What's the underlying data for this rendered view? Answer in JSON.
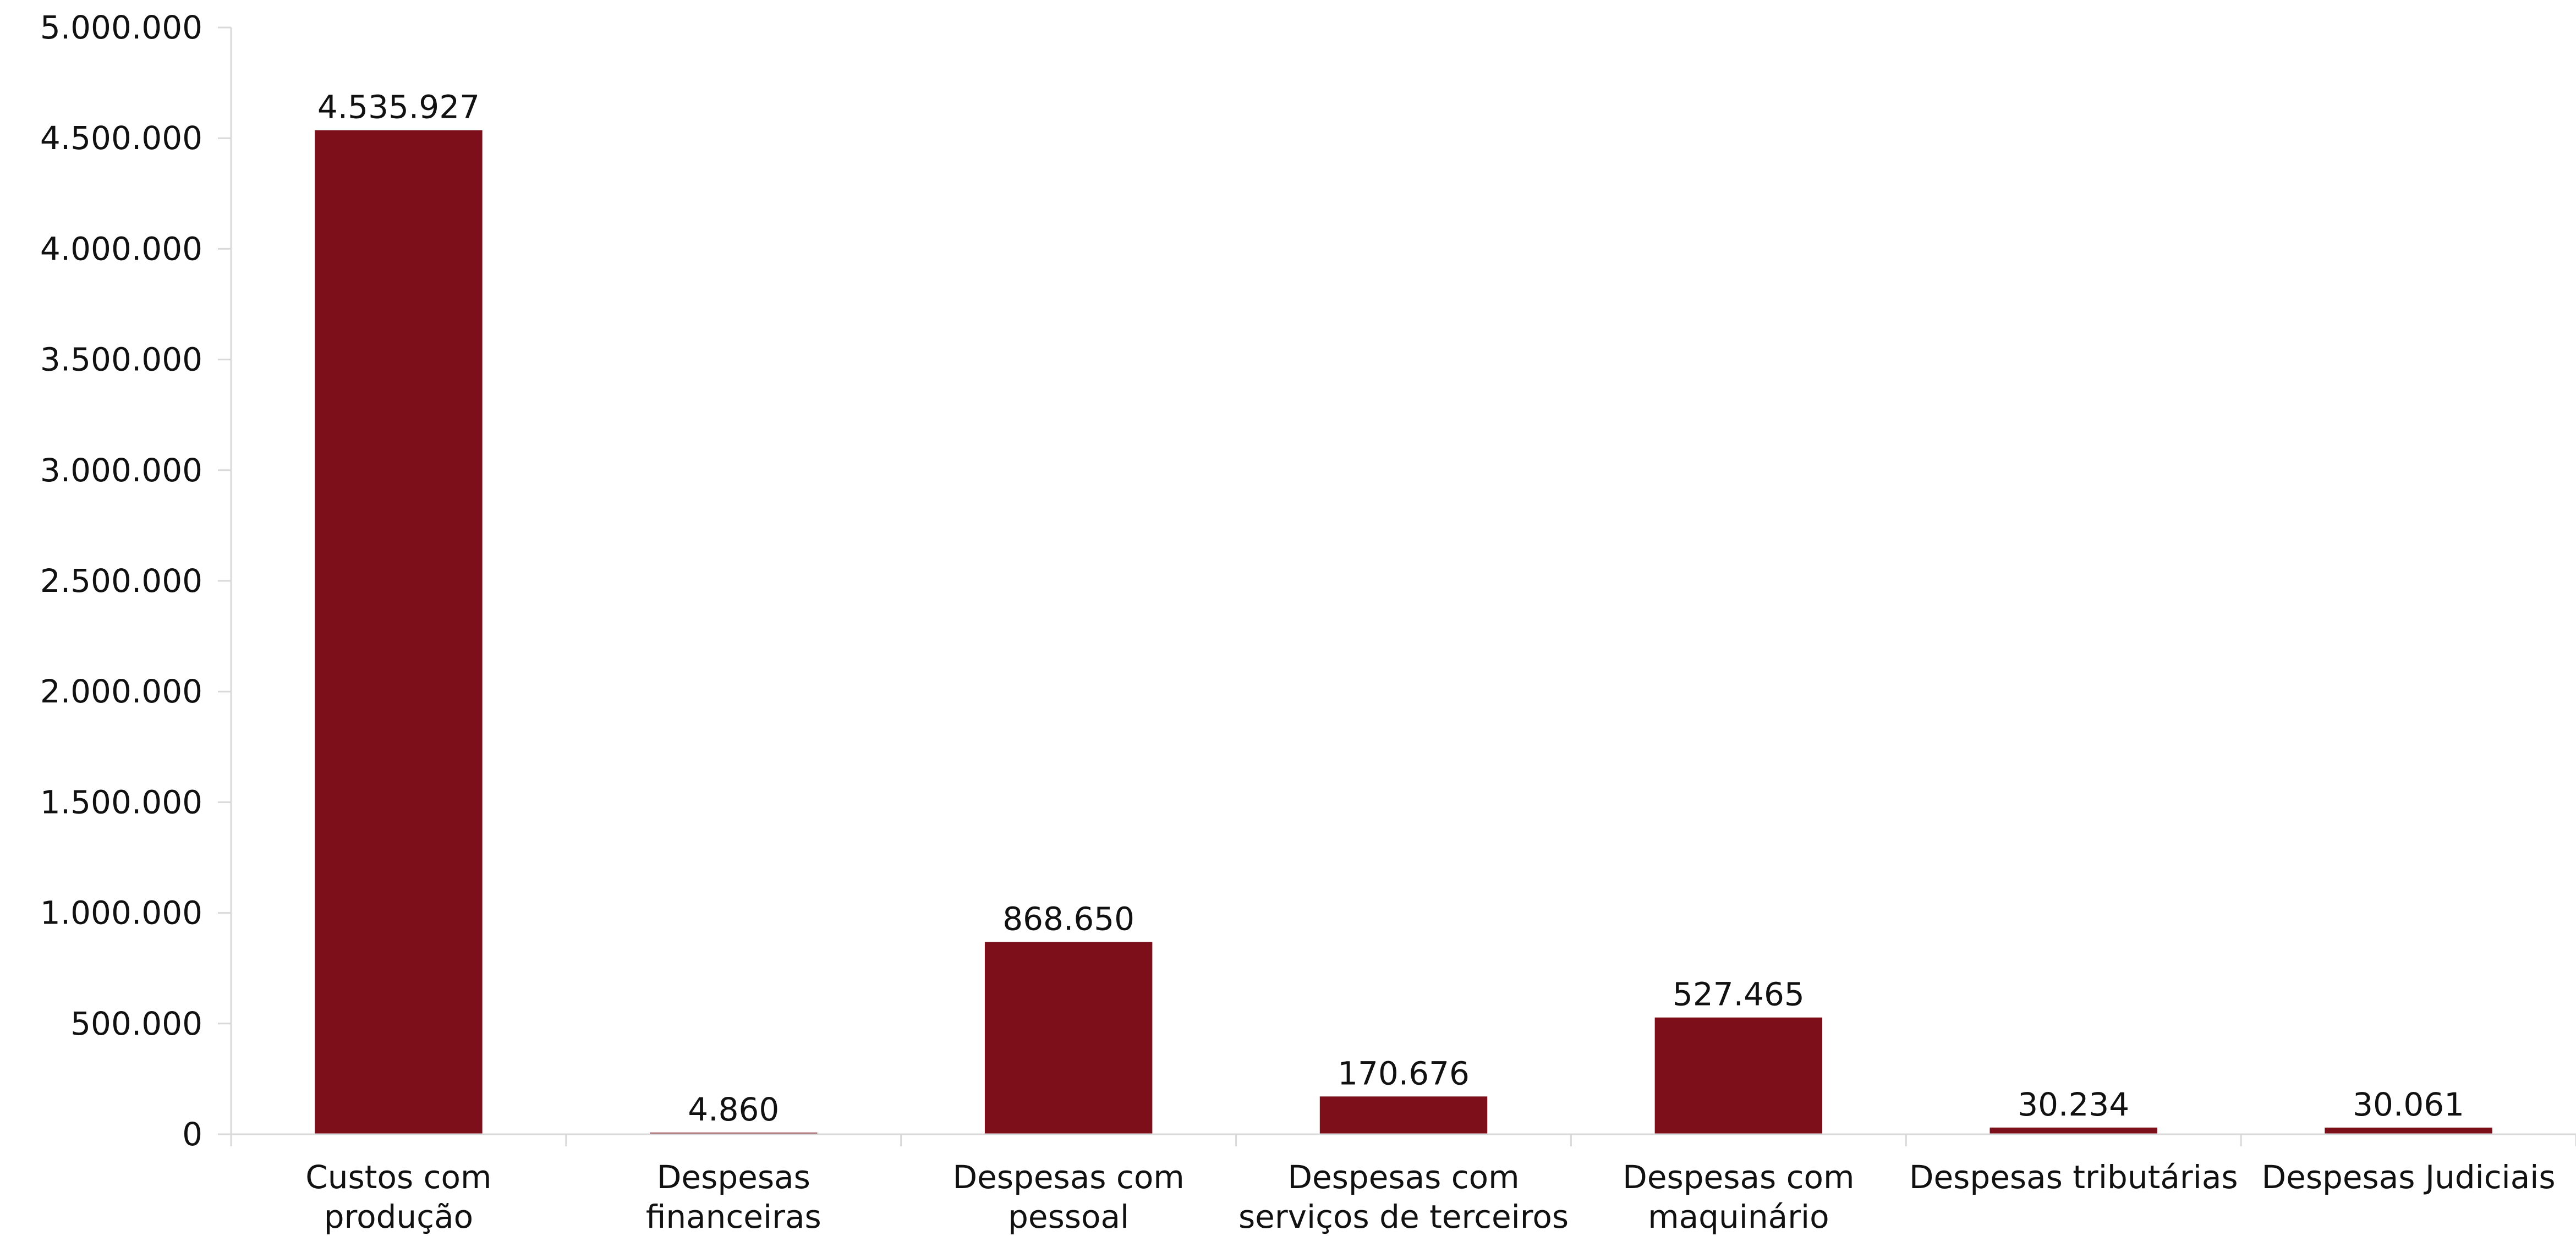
{
  "chart_data": {
    "type": "bar",
    "title": "",
    "xlabel": "",
    "ylabel": "",
    "ylim": [
      0,
      5000000
    ],
    "yticks": [
      0,
      500000,
      1000000,
      1500000,
      2000000,
      2500000,
      3000000,
      3500000,
      4000000,
      4500000,
      5000000
    ],
    "ytick_labels": [
      "0",
      "500.000",
      "1.000.000",
      "1.500.000",
      "2.000.000",
      "2.500.000",
      "3.000.000",
      "3.500.000",
      "4.000.000",
      "4.500.000",
      "5.000.000"
    ],
    "grid": false,
    "legend": "none",
    "bar_color": "#7d0f1b",
    "categories": [
      [
        "Custos com",
        "produção"
      ],
      [
        "Despesas",
        "financeiras"
      ],
      [
        "Despesas com",
        "pessoal"
      ],
      [
        "Despesas com",
        "serviços de terceiros"
      ],
      [
        "Despesas com",
        "maquinário"
      ],
      [
        "Despesas tributárias"
      ],
      [
        "Despesas Judiciais"
      ]
    ],
    "values": [
      4535927,
      4860,
      868650,
      170676,
      527465,
      30234,
      30061
    ],
    "data_labels": [
      "4.535.927",
      "4.860",
      "868.650",
      "170.676",
      "527.465",
      "30.234",
      "30.061"
    ]
  }
}
